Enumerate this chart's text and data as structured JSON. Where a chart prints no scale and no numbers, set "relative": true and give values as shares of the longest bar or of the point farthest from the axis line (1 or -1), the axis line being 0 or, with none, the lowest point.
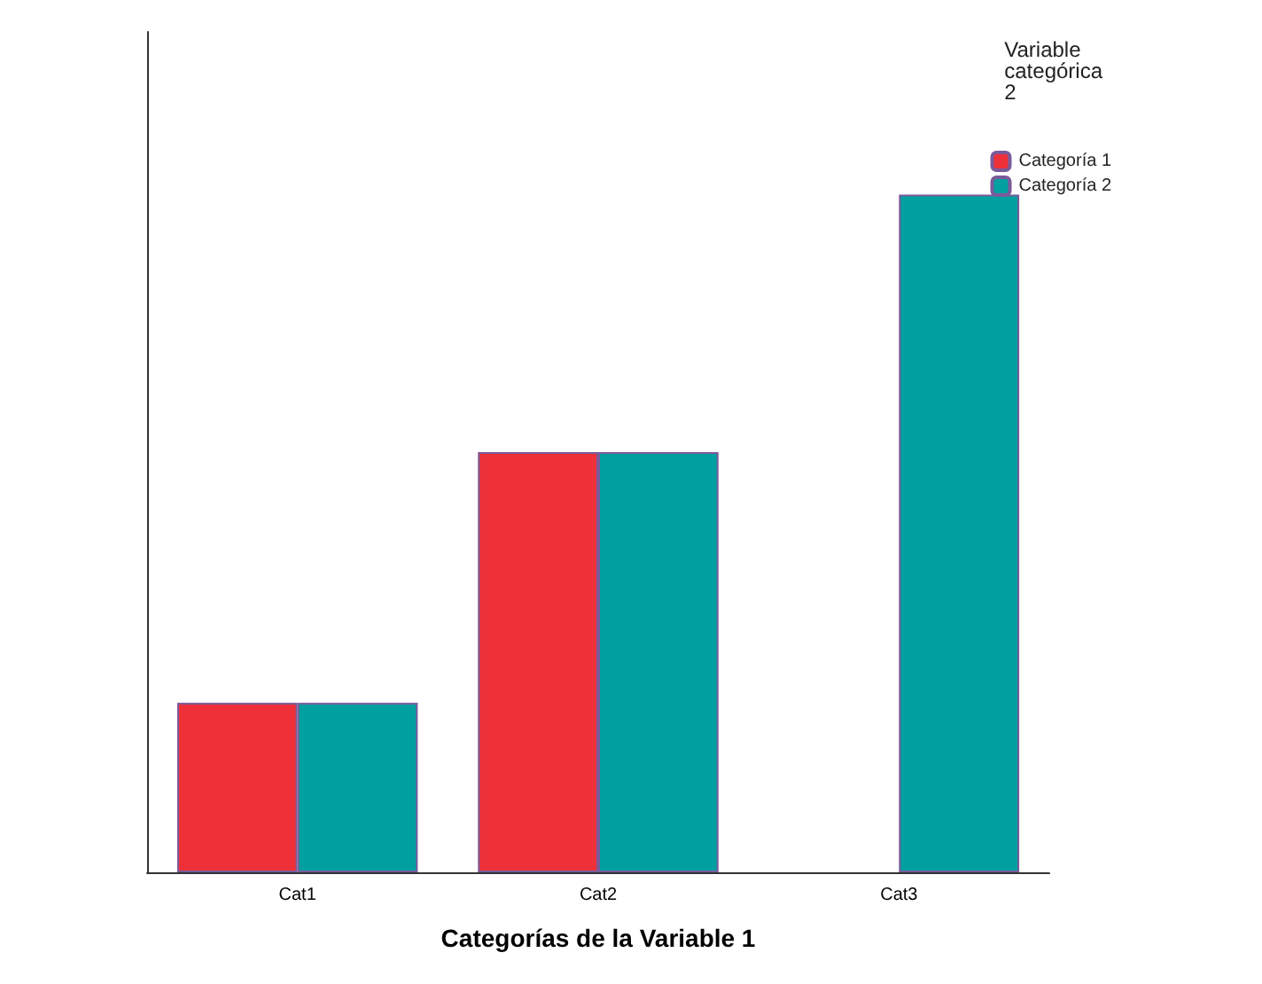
{
  "chart_data": {
    "type": "bar",
    "xlabel": "Categorías de la Variable 1",
    "legend_title": "Variable\ncategórica\n2",
    "categories": [
      "Cat1",
      "Cat2",
      "Cat3"
    ],
    "relative": true,
    "legend": "top right",
    "grid": false,
    "series": [
      {
        "name": "Categoría 1",
        "color": "#ee3039",
        "values": [
          0.25,
          0.62,
          null
        ]
      },
      {
        "name": "Categoría 2",
        "color": "#00a0a0",
        "values": [
          0.25,
          0.62,
          1
        ]
      }
    ]
  }
}
